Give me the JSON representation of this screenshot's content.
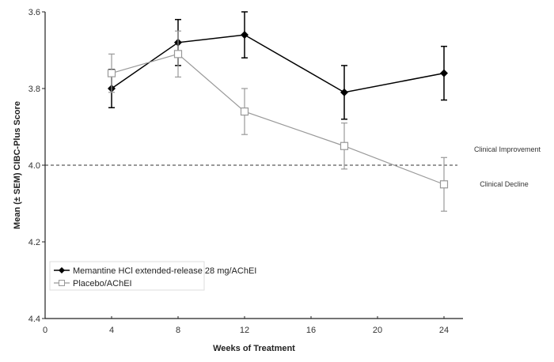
{
  "chart_data": {
    "type": "line",
    "title": "",
    "xlabel": "Weeks of Treatment",
    "ylabel": "Mean (± SEM) CIBC-Plus Score",
    "xlim": [
      0,
      25
    ],
    "ylim": [
      3.6,
      4.4
    ],
    "y_inverted": true,
    "x_ticks": [
      0,
      4,
      8,
      12,
      16,
      20,
      24
    ],
    "x_tick_labels": [
      "0",
      "4",
      "8",
      "12",
      "16",
      "20",
      "24"
    ],
    "y_ticks": [
      3.6,
      3.8,
      4.0,
      4.2,
      4.4
    ],
    "y_tick_labels": [
      "3.6",
      "3.8",
      "4.0",
      "4.2",
      "4.4"
    ],
    "grid": false,
    "legend_position": "bottom-left",
    "reference_line": {
      "y": 4.0,
      "style": "dashed"
    },
    "annotations": [
      {
        "text": "Clinical Improvement",
        "position": "above-reference-line-right"
      },
      {
        "text": "Clinical Decline",
        "position": "below-reference-line-right"
      }
    ],
    "series": [
      {
        "name": "Memantine HCl extended-release 28 mg/AChEI",
        "marker": "filled-diamond",
        "color": "#000000",
        "x": [
          4,
          8,
          12,
          18,
          24
        ],
        "values": [
          3.8,
          3.68,
          3.66,
          3.81,
          3.76
        ],
        "error_low": [
          3.85,
          3.74,
          3.72,
          3.88,
          3.83
        ],
        "error_high": [
          3.75,
          3.62,
          3.6,
          3.74,
          3.69
        ]
      },
      {
        "name": "Placebo/AChEI",
        "marker": "open-square",
        "color": "#999999",
        "x": [
          4,
          8,
          12,
          18,
          24
        ],
        "values": [
          3.76,
          3.71,
          3.86,
          3.95,
          4.05
        ],
        "error_low": [
          3.81,
          3.77,
          3.92,
          4.01,
          4.12
        ],
        "error_high": [
          3.71,
          3.65,
          3.8,
          3.89,
          3.98
        ]
      }
    ]
  }
}
